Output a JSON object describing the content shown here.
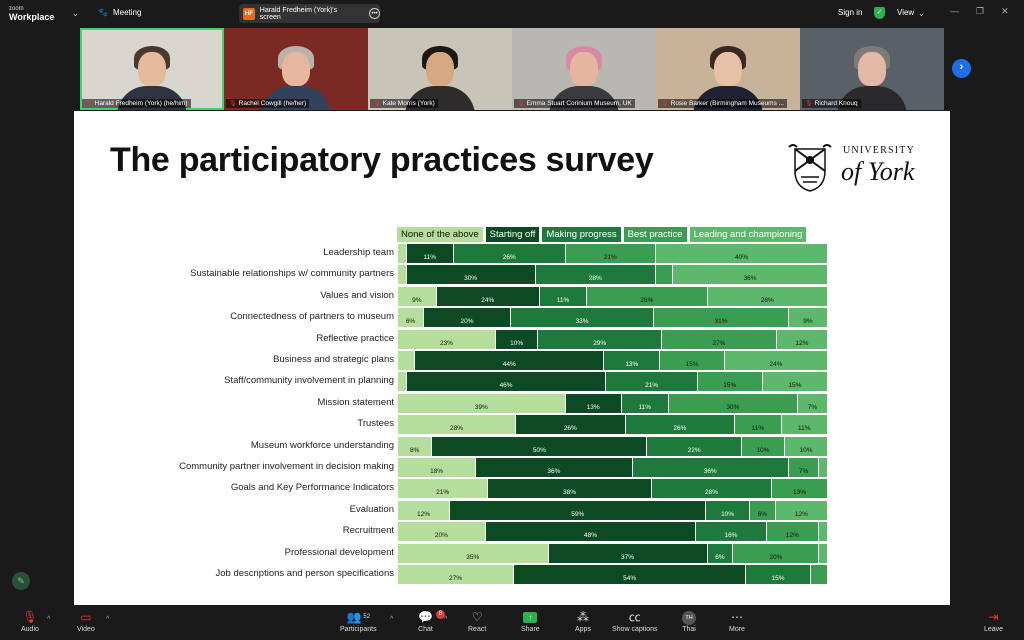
{
  "topbar": {
    "logo_small": "zoom",
    "logo_big": "Workplace",
    "meeting_label": "Meeting",
    "share_initials": "HF",
    "share_label": "Harald Fredheim (York)'s screen",
    "sign_in": "Sign in",
    "view": "View"
  },
  "participants": [
    {
      "name": "Harald Fredheim (York) (he/him)",
      "bg": "#d9d6cf",
      "skin": "#e6b99b",
      "body": "#2d3440",
      "hair": "#4a3a2e",
      "active": true
    },
    {
      "name": "Rachel Cowgill (he/her)",
      "bg": "#7a2a22",
      "skin": "#e7b6a0",
      "body": "#34415c",
      "hair": "#b8b2a8",
      "active": false
    },
    {
      "name": "Kate Morris (York)",
      "bg": "#c9c4b8",
      "skin": "#d6a880",
      "body": "#2e2b2c",
      "hair": "#1d1917",
      "active": false
    },
    {
      "name": "Emma Stuart Corinium Museum, UK",
      "bg": "#b9b7b2",
      "skin": "#e5b5a0",
      "body": "#3b3a3f",
      "hair": "#d88aa0",
      "active": false
    },
    {
      "name": "Rosie Barker (Birmingham Museums ...",
      "bg": "#c7b29a",
      "skin": "#e7c0a8",
      "body": "#1e2233",
      "hair": "#3a2a22",
      "active": false
    },
    {
      "name": "Richard Knouq",
      "bg": "#5a6068",
      "skin": "#e3b9a5",
      "body": "#2a2a2d",
      "hair": "#7d7a78",
      "active": false
    }
  ],
  "slide": {
    "title": "The participatory practices survey",
    "logo_top": "UNIVERSITY",
    "logo_bottom": "of York"
  },
  "chart_data": {
    "type": "bar",
    "stacked": true,
    "orientation": "horizontal",
    "legend": [
      {
        "name": "None of the above",
        "color": "#b5dd9b"
      },
      {
        "name": "Starting off",
        "color": "#0c4a24"
      },
      {
        "name": "Making progress",
        "color": "#1e7a3c"
      },
      {
        "name": "Best practice",
        "color": "#3a9e52"
      },
      {
        "name": "Leading and championing",
        "color": "#5cb86a"
      }
    ],
    "categories": [
      "Leadership team",
      "Sustainable relationships w/ community partners",
      "Values and vision",
      "Connectedness of partners to museum",
      "Reflective practice",
      "Business and strategic plans",
      "Staff/community involvement in planning",
      "Mission statement",
      "Trustees",
      "Museum workforce understanding",
      "Community partner involvement in decision making",
      "Goals and Key Performance Indicators",
      "Evaluation",
      "Recruitment",
      "Professional development",
      "Job descriptions and person specifications"
    ],
    "series": [
      {
        "name": "None of the above",
        "values": [
          2,
          2,
          9,
          6,
          23,
          4,
          2,
          39,
          28,
          8,
          18,
          21,
          12,
          20,
          35,
          27
        ]
      },
      {
        "name": "Starting off",
        "values": [
          11,
          30,
          24,
          20,
          10,
          44,
          46,
          13,
          26,
          50,
          36,
          38,
          59,
          48,
          37,
          54
        ]
      },
      {
        "name": "Making progress",
        "values": [
          26,
          28,
          11,
          33,
          29,
          13,
          21,
          11,
          26,
          22,
          36,
          28,
          10,
          16,
          6,
          15
        ]
      },
      {
        "name": "Best practice",
        "values": [
          21,
          4,
          28,
          31,
          27,
          15,
          15,
          30,
          11,
          10,
          7,
          13,
          6,
          12,
          20,
          4
        ]
      },
      {
        "name": "Leading and championing",
        "values": [
          40,
          36,
          28,
          9,
          12,
          24,
          15,
          7,
          11,
          10,
          2,
          0,
          12,
          2,
          2,
          0
        ]
      }
    ],
    "labels": [
      [
        "",
        "11%",
        "26%",
        "21%",
        "40%"
      ],
      [
        "",
        "30%",
        "28%",
        "",
        "36%"
      ],
      [
        "9%",
        "24%",
        "11%",
        "28%",
        "28%"
      ],
      [
        "6%",
        "20%",
        "33%",
        "31%",
        "9%"
      ],
      [
        "23%",
        "10%",
        "29%",
        "27%",
        "12%"
      ],
      [
        "",
        "44%",
        "13%",
        "15%",
        "24%"
      ],
      [
        "",
        "46%",
        "21%",
        "15%",
        "15%"
      ],
      [
        "39%",
        "13%",
        "11%",
        "30%",
        "7%"
      ],
      [
        "28%",
        "26%",
        "26%",
        "11%",
        "11%"
      ],
      [
        "8%",
        "50%",
        "22%",
        "10%",
        "10%"
      ],
      [
        "18%",
        "36%",
        "36%",
        "7%",
        ""
      ],
      [
        "21%",
        "38%",
        "28%",
        "13%",
        ""
      ],
      [
        "12%",
        "59%",
        "10%",
        "6%",
        "12%"
      ],
      [
        "20%",
        "48%",
        "16%",
        "12%",
        ""
      ],
      [
        "35%",
        "37%",
        "6%",
        "20%",
        ""
      ],
      [
        "27%",
        "54%",
        "15%",
        "",
        ""
      ]
    ]
  },
  "toolbar": {
    "audio": "Audio",
    "video": "Video",
    "participants": "Participants",
    "participants_count": "52",
    "chat": "Chat",
    "chat_badge": "8",
    "react": "React",
    "share": "Share",
    "apps": "Apps",
    "captions": "Show captions",
    "user_initials": "TH",
    "user": "Thai",
    "more": "More",
    "leave": "Leave"
  }
}
